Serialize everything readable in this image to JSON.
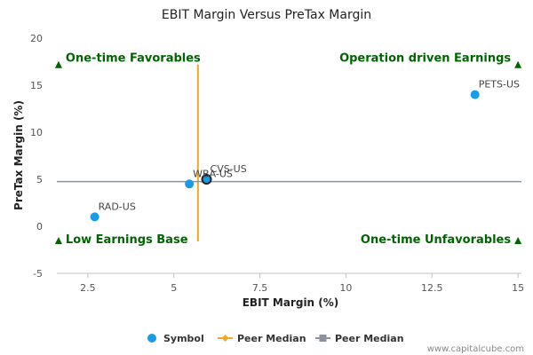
{
  "chart_data": {
    "type": "scatter",
    "title": "EBIT Margin Versus PreTax Margin",
    "xlabel": "EBIT Margin (%)",
    "ylabel": "PreTax Margin (%)",
    "xlim": [
      1.6,
      15.1
    ],
    "ylim": [
      -5,
      20
    ],
    "x_ticks": [
      2.5,
      5,
      7.5,
      10,
      12.5,
      15
    ],
    "x_tick_labels": [
      "2.5",
      "5",
      "7.5",
      "10",
      "12.5",
      "15"
    ],
    "y_ticks": [
      -5,
      0,
      5,
      10,
      15,
      20
    ],
    "y_tick_labels": [
      "-5",
      "0",
      "5",
      "10",
      "15",
      "20"
    ],
    "grid": false,
    "legend_position": "bottom",
    "series": [
      {
        "name": "Symbol",
        "color": "#1a9be6",
        "points": [
          {
            "label": "PETS-US",
            "x": 13.75,
            "y": 14.0
          },
          {
            "label": "CVS-US",
            "x": 5.95,
            "y": 5.0,
            "highlight": true
          },
          {
            "label": "WBA-US",
            "x": 5.45,
            "y": 4.5
          },
          {
            "label": "RAD-US",
            "x": 2.7,
            "y": 1.0
          }
        ]
      },
      {
        "name": "Peer Median",
        "color": "#f5a623",
        "orientation": "vertical",
        "x": 5.7,
        "y_range": [
          -1.6,
          17.2
        ]
      },
      {
        "name": "Peer Median",
        "color": "#8a939c",
        "orientation": "horizontal",
        "y": 4.75,
        "x_range": [
          1.6,
          15.1
        ]
      }
    ],
    "quadrant_labels": [
      {
        "text": "One-time Favorables",
        "x": 1.65,
        "y": 17.1,
        "anchor": "start"
      },
      {
        "text": "Operation driven Earnings",
        "x": 15.0,
        "y": 17.1,
        "anchor": "end"
      },
      {
        "text": "Low Earnings Base",
        "x": 1.65,
        "y": -1.6,
        "anchor": "start"
      },
      {
        "text": "One-time Unfavorables",
        "x": 15.0,
        "y": -1.6,
        "anchor": "end"
      }
    ],
    "quadrant_color": "#006400"
  },
  "credit": "www.capitalcube.com"
}
